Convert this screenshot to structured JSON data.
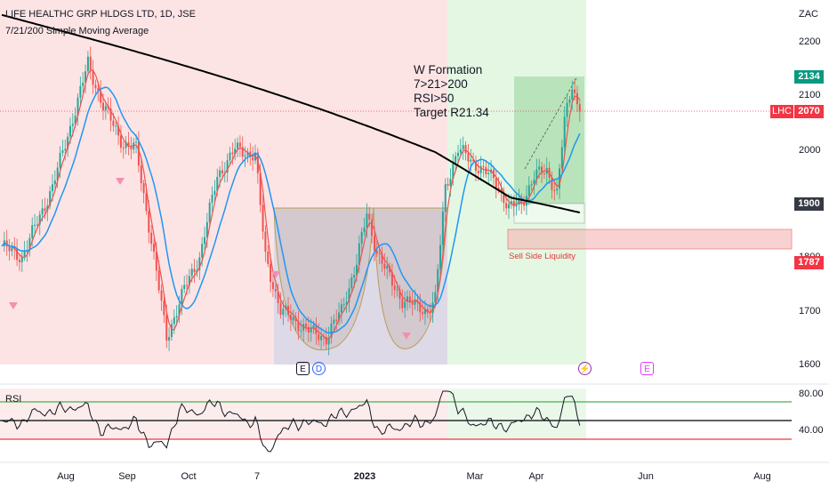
{
  "header": {
    "title": "LIFE HEALTHC GRP HLDGS LTD, 1D, JSE",
    "indicator": "7/21/200 Simple Moving Average"
  },
  "annotation": {
    "line1": "W Formation",
    "line2": "7>21>200",
    "line3": "RSI>50",
    "line4": "Target R21.34"
  },
  "currency": "ZAC",
  "price_tags": {
    "target": "2134",
    "symbol": "LHC",
    "last": "2070",
    "level_1900": "1900",
    "level_1787": "1787"
  },
  "sell_side_label": "Sell Side Liquidity",
  "events": {
    "earnings": "E",
    "dividend": "D",
    "future_earnings": "E"
  },
  "rsi": {
    "label": "RSI",
    "upper": "80.00",
    "lower": "40.00"
  },
  "colors": {
    "up": "#26a69a",
    "down": "#ef5350",
    "sma7": "#ef5350",
    "sma21": "#2196f3",
    "sma200": "#000000",
    "bear_zone": "#fde4e4",
    "bull_zone": "#e3f7e3"
  },
  "chart_data": {
    "type": "candlestick",
    "series": [
      {
        "name": "7"
      },
      {
        "name": "21"
      },
      {
        "name": "200"
      }
    ],
    "y_ticks": [
      "2200",
      "2100",
      "2000",
      "1900",
      "1800",
      "1700",
      "1600"
    ],
    "ylim": [
      1600,
      2200
    ],
    "x_ticks": [
      "Aug",
      "Sep",
      "Oct",
      "7",
      "2023",
      "Mar",
      "Apr",
      "Jun",
      "Aug"
    ],
    "levels": {
      "last": 2070,
      "target": 2134,
      "support": 1900,
      "liquidity_low": 1787
    },
    "anchors": [
      {
        "d": 0,
        "p": 1820
      },
      {
        "d": 8,
        "p": 1800
      },
      {
        "d": 20,
        "p": 1930
      },
      {
        "d": 30,
        "p": 2090
      },
      {
        "d": 34,
        "p": 2160
      },
      {
        "d": 40,
        "p": 2080
      },
      {
        "d": 48,
        "p": 2010
      },
      {
        "d": 53,
        "p": 2000
      },
      {
        "d": 58,
        "p": 1860
      },
      {
        "d": 65,
        "p": 1650
      },
      {
        "d": 72,
        "p": 1740
      },
      {
        "d": 78,
        "p": 1800
      },
      {
        "d": 85,
        "p": 1950
      },
      {
        "d": 92,
        "p": 2000
      },
      {
        "d": 100,
        "p": 1990
      },
      {
        "d": 104,
        "p": 1800
      },
      {
        "d": 110,
        "p": 1700
      },
      {
        "d": 116,
        "p": 1680
      },
      {
        "d": 122,
        "p": 1660
      },
      {
        "d": 128,
        "p": 1650
      },
      {
        "d": 134,
        "p": 1700
      },
      {
        "d": 140,
        "p": 1790
      },
      {
        "d": 144,
        "p": 1880
      },
      {
        "d": 148,
        "p": 1810
      },
      {
        "d": 153,
        "p": 1760
      },
      {
        "d": 158,
        "p": 1720
      },
      {
        "d": 163,
        "p": 1710
      },
      {
        "d": 168,
        "p": 1700
      },
      {
        "d": 171,
        "p": 1720
      },
      {
        "d": 175,
        "p": 1930
      },
      {
        "d": 180,
        "p": 2000
      },
      {
        "d": 185,
        "p": 1980
      },
      {
        "d": 190,
        "p": 1960
      },
      {
        "d": 195,
        "p": 1940
      },
      {
        "d": 200,
        "p": 1890
      },
      {
        "d": 205,
        "p": 1900
      },
      {
        "d": 210,
        "p": 1950
      },
      {
        "d": 215,
        "p": 1960
      },
      {
        "d": 219,
        "p": 1920
      },
      {
        "d": 222,
        "p": 2050
      },
      {
        "d": 225,
        "p": 2120
      },
      {
        "d": 228,
        "p": 2070
      }
    ]
  }
}
